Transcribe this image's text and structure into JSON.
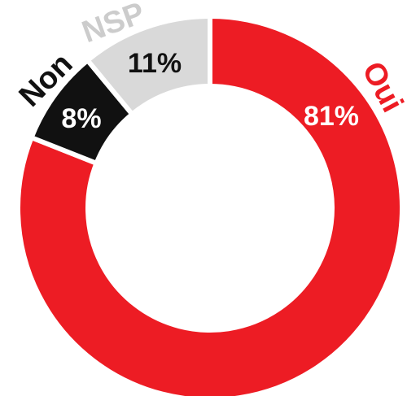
{
  "chart_data": {
    "type": "donut",
    "categories": [
      "Oui",
      "Non",
      "NSP"
    ],
    "values": [
      81,
      8,
      11
    ],
    "value_labels": [
      "81%",
      "8%",
      "11%"
    ],
    "colors": [
      "#ed1c24",
      "#111111",
      "#d9d9d9"
    ]
  }
}
